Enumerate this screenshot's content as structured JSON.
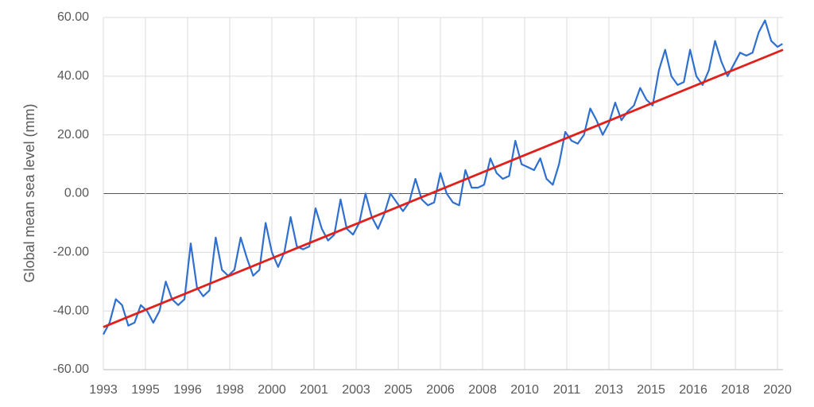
{
  "chart_data": {
    "type": "line",
    "y_label": "Global mean sea level (mm)",
    "xlim": [
      1993,
      2020.22
    ],
    "xticks": [
      {
        "value": 1993,
        "label": "1993"
      },
      {
        "value": 1994.6875,
        "label": "1995"
      },
      {
        "value": 1996.375,
        "label": "1996"
      },
      {
        "value": 1998.0625,
        "label": "1998"
      },
      {
        "value": 1999.75,
        "label": "2000"
      },
      {
        "value": 2001.4375,
        "label": "2001"
      },
      {
        "value": 2003.125,
        "label": "2003"
      },
      {
        "value": 2004.8125,
        "label": "2005"
      },
      {
        "value": 2006.5,
        "label": "2006"
      },
      {
        "value": 2008.1875,
        "label": "2008"
      },
      {
        "value": 2009.875,
        "label": "2010"
      },
      {
        "value": 2011.5625,
        "label": "2011"
      },
      {
        "value": 2013.25,
        "label": "2013"
      },
      {
        "value": 2014.9375,
        "label": "2015"
      },
      {
        "value": 2016.625,
        "label": "2016"
      },
      {
        "value": 2018.3125,
        "label": "2018"
      },
      {
        "value": 2020,
        "label": "2020"
      }
    ],
    "ylim": [
      -60,
      60
    ],
    "yticks": [
      {
        "value": -60,
        "label": "-60.00"
      },
      {
        "value": -40,
        "label": "-40.00"
      },
      {
        "value": -20,
        "label": "-20.00"
      },
      {
        "value": 0,
        "label": "0.00"
      },
      {
        "value": 20,
        "label": "20.00"
      },
      {
        "value": 40,
        "label": "40.00"
      },
      {
        "value": 60,
        "label": "60.00"
      }
    ],
    "grid": true,
    "series": [
      {
        "color": "#2f6fcf",
        "x": [
          1993,
          1993.25,
          1993.5,
          1993.75,
          1994,
          1994.25,
          1994.5,
          1994.75,
          1995,
          1995.25,
          1995.5,
          1995.75,
          1996,
          1996.25,
          1996.5,
          1996.75,
          1997,
          1997.25,
          1997.5,
          1997.75,
          1998,
          1998.25,
          1998.5,
          1998.75,
          1999,
          1999.25,
          1999.5,
          1999.75,
          2000,
          2000.25,
          2000.5,
          2000.75,
          2001,
          2001.25,
          2001.5,
          2001.75,
          2002,
          2002.25,
          2002.5,
          2002.75,
          2003,
          2003.25,
          2003.5,
          2003.75,
          2004,
          2004.25,
          2004.5,
          2004.75,
          2005,
          2005.25,
          2005.5,
          2005.75,
          2006,
          2006.25,
          2006.5,
          2006.75,
          2007,
          2007.25,
          2007.5,
          2007.75,
          2008,
          2008.25,
          2008.5,
          2008.75,
          2009,
          2009.25,
          2009.5,
          2009.75,
          2010,
          2010.25,
          2010.5,
          2010.75,
          2011,
          2011.25,
          2011.5,
          2011.75,
          2012,
          2012.25,
          2012.5,
          2012.75,
          2013,
          2013.25,
          2013.5,
          2013.75,
          2014,
          2014.25,
          2014.5,
          2014.75,
          2015,
          2015.25,
          2015.5,
          2015.75,
          2016,
          2016.25,
          2016.5,
          2016.75,
          2017,
          2017.25,
          2017.5,
          2017.75,
          2018,
          2018.25,
          2018.5,
          2018.75,
          2019,
          2019.25,
          2019.5,
          2019.75,
          2020,
          2020.2
        ],
        "values": [
          -48,
          -44,
          -36,
          -38,
          -45,
          -44,
          -38,
          -40,
          -44,
          -40,
          -30,
          -36,
          -38,
          -36,
          -17,
          -32,
          -35,
          -33,
          -15,
          -26,
          -28,
          -26,
          -15,
          -22,
          -28,
          -26,
          -10,
          -20,
          -25,
          -20,
          -8,
          -18,
          -19,
          -18,
          -5,
          -12,
          -16,
          -14,
          -2,
          -12,
          -14,
          -10,
          0,
          -8,
          -12,
          -7,
          0,
          -3,
          -6,
          -3,
          5,
          -2,
          -4,
          -3,
          7,
          0,
          -3,
          -4,
          8,
          2,
          2,
          3,
          12,
          7,
          5,
          6,
          18,
          10,
          9,
          8,
          12,
          5,
          3,
          10,
          21,
          18,
          17,
          20,
          29,
          25,
          20,
          24,
          31,
          25,
          28,
          30,
          36,
          32,
          30,
          42,
          49,
          40,
          37,
          38,
          49,
          40,
          37,
          42,
          52,
          45,
          40,
          44,
          48,
          47,
          48,
          55,
          59,
          52,
          50,
          51
        ]
      },
      {
        "color": "#e0201b",
        "x": [
          1993,
          2020.22
        ],
        "values": [
          -45.5,
          49
        ]
      }
    ]
  }
}
